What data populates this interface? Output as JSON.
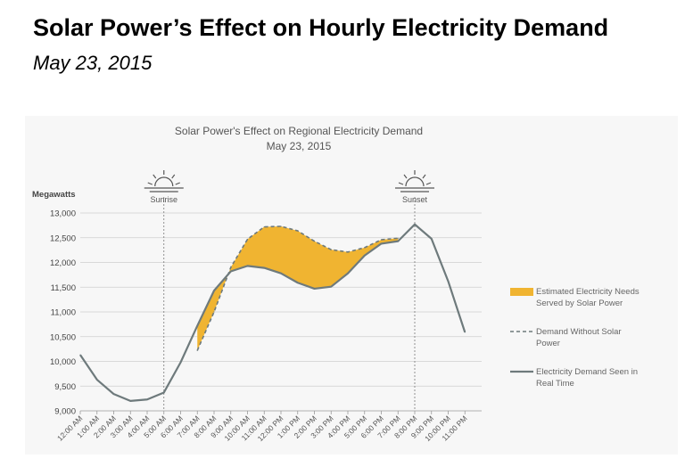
{
  "slide": {
    "title": "Solar Power’s Effect on Hourly Electricity Demand",
    "subtitle": "May 23, 2015"
  },
  "chart_data": {
    "type": "line",
    "title": "Solar Power's Effect on Regional Electricity Demand",
    "subtitle": "May 23, 2015",
    "ylabel": "Megawatts",
    "xlabel": "",
    "ylim": [
      9000,
      13000
    ],
    "yticks": [
      9000,
      9500,
      10000,
      10500,
      11000,
      11500,
      12000,
      12500,
      13000
    ],
    "ytick_labels": [
      "9,000",
      "9,500",
      "10,000",
      "10,500",
      "11,000",
      "11,500",
      "12,000",
      "12,500",
      "13,000"
    ],
    "grid": true,
    "legend_position": "right",
    "categories": [
      "1:00 AM",
      "2:00 AM",
      "3:00 AM",
      "4:00 AM",
      "5:00 AM",
      "6:00 AM",
      "7:00 AM",
      "8:00 AM",
      "9:00 AM",
      "10:00 AM",
      "11:00 AM",
      "12:00 PM",
      "1:00 PM",
      "2:00 PM",
      "3:00 PM",
      "4:00 PM",
      "5:00 PM",
      "6:00 PM",
      "7:00 PM",
      "8:00 PM",
      "9:00 PM",
      "10:00 PM",
      "11:00 PM",
      "12:00 AM"
    ],
    "x_start": "12:00 AM",
    "x_end": "12:00 AM",
    "series": [
      {
        "name": "Electricity Demand Seen in Real Time",
        "x": [
          "12:00 AM",
          "1:00 AM",
          "2:00 AM",
          "3:00 AM",
          "4:00 AM",
          "5:00 AM",
          "6:00 AM",
          "7:00 AM",
          "8:00 AM",
          "9:00 AM",
          "10:00 AM",
          "11:00 AM",
          "12:00 PM",
          "1:00 PM",
          "2:00 PM",
          "3:00 PM",
          "4:00 PM",
          "5:00 PM",
          "6:00 PM",
          "7:00 PM",
          "8:00 PM",
          "9:00 PM",
          "10:00 PM",
          "11:00 PM",
          "12:00 AM"
        ],
        "values": [
          10130,
          9630,
          9340,
          9200,
          9230,
          9370,
          9980,
          10720,
          11430,
          11820,
          11930,
          11890,
          11780,
          11590,
          11470,
          11510,
          11780,
          12140,
          12380,
          12430,
          12770,
          12480,
          11620,
          10590,
          null
        ],
        "color": "#6e7a7c",
        "style": "solid"
      },
      {
        "name": "Demand Without Solar Power",
        "x": [
          "7:00 AM",
          "8:00 AM",
          "9:00 AM",
          "10:00 AM",
          "11:00 AM",
          "12:00 PM",
          "1:00 PM",
          "2:00 PM",
          "3:00 PM",
          "4:00 PM",
          "5:00 PM",
          "6:00 PM",
          "7:00 PM"
        ],
        "values": [
          10220,
          11000,
          11900,
          12470,
          12720,
          12730,
          12640,
          12430,
          12260,
          12210,
          12300,
          12460,
          12490
        ],
        "color": "#6e7a7c",
        "style": "dashed"
      }
    ],
    "area": {
      "name": "Estimated Electricity Needs Served by Solar Power",
      "color": "#f0b431"
    },
    "markers": [
      {
        "label": "Sunrise",
        "at": "5:00 AM"
      },
      {
        "label": "Sunset",
        "at": "8:00 PM"
      }
    ],
    "colors": {
      "real_time": "#6e7a7c",
      "solar": "#f0b431",
      "grid": "#cfcfcf",
      "panel": "#f7f7f7"
    }
  }
}
